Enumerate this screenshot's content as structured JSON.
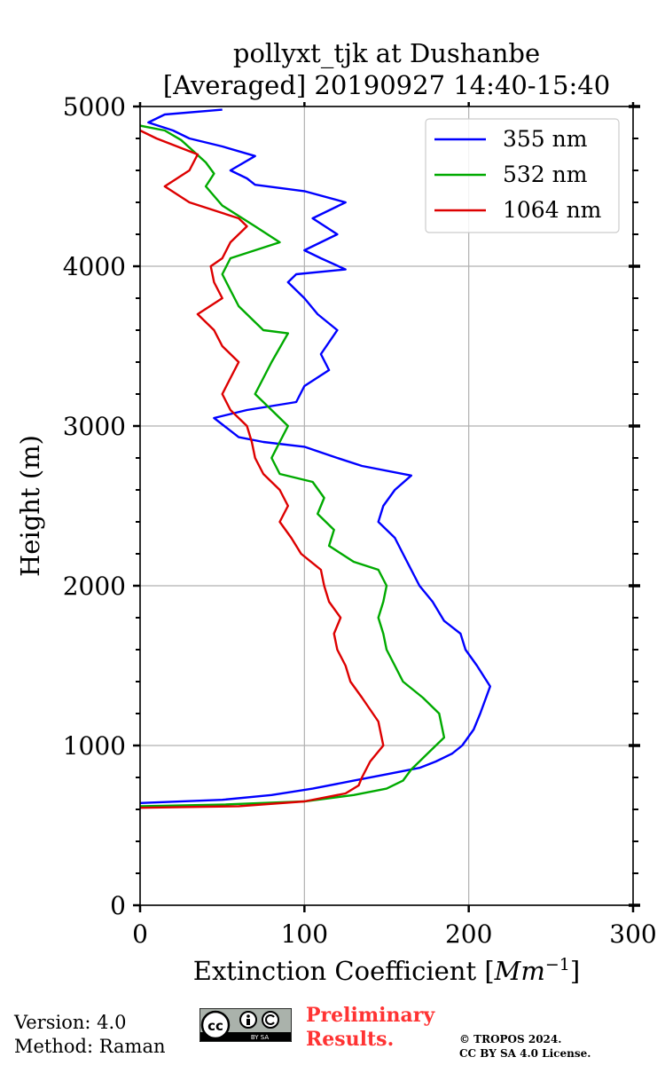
{
  "chart_data": {
    "type": "line",
    "title": "pollyxt_tjk at Dushanbe",
    "subtitle": "[Averaged] 20190927 14:40-15:40",
    "xlabel_main": "Extinction Coefficient [",
    "xlabel_unit_base": "Mm",
    "xlabel_unit_exp": "−1",
    "xlabel_close": "]",
    "ylabel": "Height (m)",
    "xlim": [
      0,
      300
    ],
    "ylim": [
      0,
      5000
    ],
    "xticks": [
      0,
      100,
      200,
      300
    ],
    "yticks": [
      0,
      1000,
      2000,
      3000,
      4000,
      5000
    ],
    "grid": true,
    "legend_location": "top-right",
    "series": [
      {
        "name": "355 nm",
        "color": "#0000ff",
        "points": [
          [
            0,
            640
          ],
          [
            50,
            660
          ],
          [
            80,
            690
          ],
          [
            105,
            730
          ],
          [
            130,
            780
          ],
          [
            150,
            820
          ],
          [
            170,
            860
          ],
          [
            180,
            900
          ],
          [
            190,
            950
          ],
          [
            196,
            1000
          ],
          [
            203,
            1100
          ],
          [
            207,
            1200
          ],
          [
            213,
            1370
          ],
          [
            205,
            1500
          ],
          [
            198,
            1600
          ],
          [
            195,
            1700
          ],
          [
            185,
            1780
          ],
          [
            178,
            1900
          ],
          [
            170,
            2000
          ],
          [
            165,
            2100
          ],
          [
            160,
            2200
          ],
          [
            155,
            2300
          ],
          [
            145,
            2400
          ],
          [
            148,
            2500
          ],
          [
            155,
            2600
          ],
          [
            165,
            2690
          ],
          [
            135,
            2750
          ],
          [
            120,
            2800
          ],
          [
            100,
            2870
          ],
          [
            75,
            2900
          ],
          [
            60,
            2930
          ],
          [
            45,
            3050
          ],
          [
            65,
            3100
          ],
          [
            95,
            3150
          ],
          [
            100,
            3250
          ],
          [
            115,
            3350
          ],
          [
            110,
            3450
          ],
          [
            120,
            3600
          ],
          [
            108,
            3700
          ],
          [
            100,
            3800
          ],
          [
            90,
            3900
          ],
          [
            95,
            3950
          ],
          [
            125,
            3980
          ],
          [
            110,
            4050
          ],
          [
            100,
            4100
          ],
          [
            120,
            4200
          ],
          [
            105,
            4300
          ],
          [
            125,
            4400
          ],
          [
            100,
            4470
          ],
          [
            70,
            4510
          ],
          [
            65,
            4550
          ],
          [
            55,
            4600
          ],
          [
            70,
            4690
          ],
          [
            50,
            4750
          ],
          [
            30,
            4800
          ],
          [
            20,
            4850
          ],
          [
            5,
            4900
          ],
          [
            15,
            4950
          ],
          [
            50,
            4980
          ]
        ]
      },
      {
        "name": "532 nm",
        "color": "#00aa00",
        "points": [
          [
            0,
            620
          ],
          [
            50,
            630
          ],
          [
            100,
            650
          ],
          [
            130,
            690
          ],
          [
            150,
            730
          ],
          [
            160,
            780
          ],
          [
            165,
            850
          ],
          [
            170,
            900
          ],
          [
            175,
            950
          ],
          [
            185,
            1050
          ],
          [
            182,
            1200
          ],
          [
            172,
            1300
          ],
          [
            160,
            1400
          ],
          [
            155,
            1500
          ],
          [
            150,
            1600
          ],
          [
            148,
            1700
          ],
          [
            145,
            1800
          ],
          [
            148,
            1900
          ],
          [
            150,
            2000
          ],
          [
            145,
            2100
          ],
          [
            130,
            2150
          ],
          [
            115,
            2250
          ],
          [
            118,
            2350
          ],
          [
            108,
            2450
          ],
          [
            112,
            2550
          ],
          [
            105,
            2650
          ],
          [
            85,
            2700
          ],
          [
            80,
            2800
          ],
          [
            85,
            2900
          ],
          [
            90,
            3000
          ],
          [
            80,
            3100
          ],
          [
            70,
            3200
          ],
          [
            75,
            3300
          ],
          [
            80,
            3400
          ],
          [
            90,
            3580
          ],
          [
            75,
            3600
          ],
          [
            70,
            3650
          ],
          [
            60,
            3750
          ],
          [
            55,
            3850
          ],
          [
            50,
            3950
          ],
          [
            55,
            4050
          ],
          [
            70,
            4100
          ],
          [
            85,
            4150
          ],
          [
            70,
            4250
          ],
          [
            50,
            4380
          ],
          [
            40,
            4500
          ],
          [
            45,
            4580
          ],
          [
            40,
            4650
          ],
          [
            25,
            4790
          ],
          [
            15,
            4850
          ],
          [
            0,
            4880
          ]
        ]
      },
      {
        "name": "1064 nm",
        "color": "#dd0000",
        "points": [
          [
            0,
            610
          ],
          [
            60,
            620
          ],
          [
            100,
            650
          ],
          [
            125,
            700
          ],
          [
            133,
            750
          ],
          [
            135,
            800
          ],
          [
            140,
            900
          ],
          [
            148,
            1000
          ],
          [
            145,
            1150
          ],
          [
            135,
            1300
          ],
          [
            128,
            1400
          ],
          [
            125,
            1500
          ],
          [
            120,
            1600
          ],
          [
            118,
            1700
          ],
          [
            122,
            1800
          ],
          [
            115,
            1900
          ],
          [
            112,
            2000
          ],
          [
            110,
            2100
          ],
          [
            98,
            2200
          ],
          [
            92,
            2300
          ],
          [
            85,
            2400
          ],
          [
            90,
            2500
          ],
          [
            85,
            2600
          ],
          [
            75,
            2700
          ],
          [
            70,
            2800
          ],
          [
            68,
            2900
          ],
          [
            65,
            3000
          ],
          [
            55,
            3100
          ],
          [
            50,
            3200
          ],
          [
            55,
            3300
          ],
          [
            60,
            3400
          ],
          [
            50,
            3500
          ],
          [
            45,
            3600
          ],
          [
            35,
            3700
          ],
          [
            50,
            3800
          ],
          [
            45,
            3900
          ],
          [
            43,
            4000
          ],
          [
            50,
            4050
          ],
          [
            55,
            4150
          ],
          [
            65,
            4250
          ],
          [
            60,
            4300
          ],
          [
            30,
            4400
          ],
          [
            15,
            4500
          ],
          [
            30,
            4600
          ],
          [
            35,
            4700
          ],
          [
            10,
            4800
          ],
          [
            0,
            4850
          ]
        ]
      }
    ]
  },
  "footer": {
    "version": "Version: 4.0",
    "method": "Method: Raman",
    "preliminary_line1": "Preliminary",
    "preliminary_line2": "Results.",
    "copyright_line1": "© TROPOS 2024.",
    "copyright_line2": "CC BY SA 4.0 License.",
    "license_logo_text": "BY SA"
  }
}
